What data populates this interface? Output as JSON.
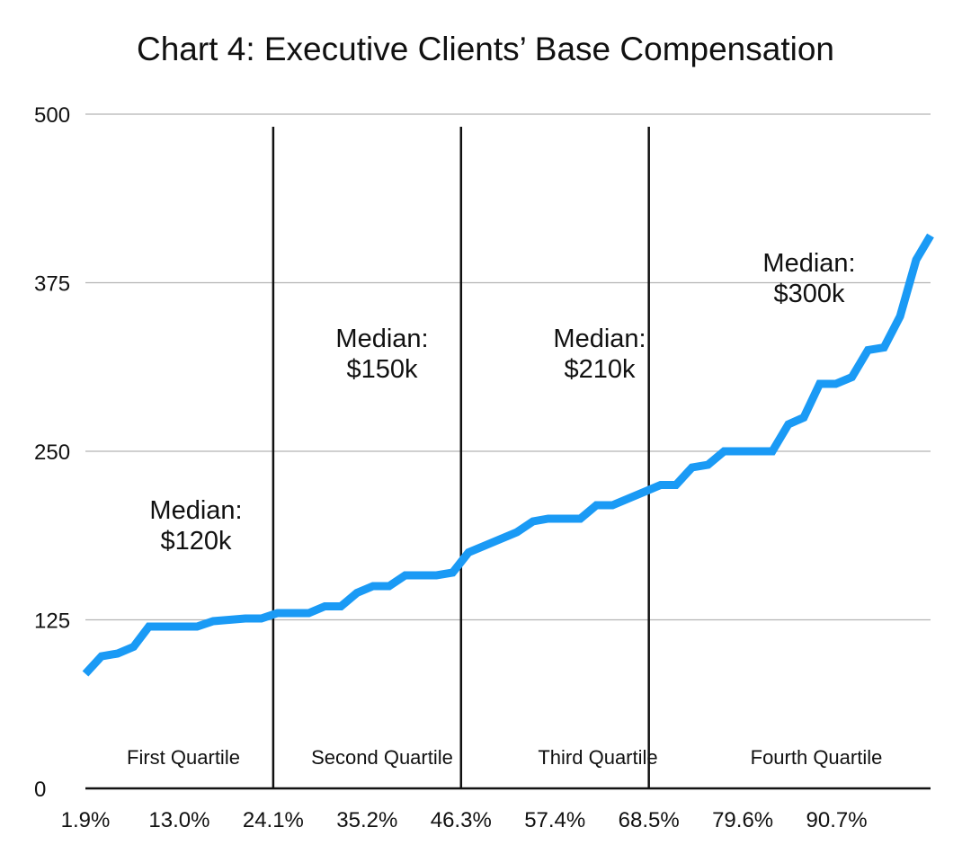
{
  "chart_data": {
    "type": "line",
    "title": "Chart 4: Executive Clients’ Base Compensation",
    "xlabel": "",
    "ylabel": "",
    "ylim": [
      0,
      500
    ],
    "y_ticks": [
      "0",
      "125",
      "250",
      "375",
      "500"
    ],
    "y_tick_values": [
      0,
      125,
      250,
      375,
      500
    ],
    "x_tick_labels": [
      "1.9%",
      "13.0%",
      "24.1%",
      "35.2%",
      "46.3%",
      "57.4%",
      "68.5%",
      "79.6%",
      "90.7%"
    ],
    "x_tick_values": [
      1.9,
      13.0,
      24.1,
      35.2,
      46.3,
      57.4,
      68.5,
      79.6,
      90.7
    ],
    "xlim": [
      1.9,
      101.8
    ],
    "grid": true,
    "series_color": "#1a9af5",
    "quartile_divider_x": [
      24.1,
      46.3,
      68.5
    ],
    "regions": [
      {
        "label": "First Quartile",
        "median_line1": "Median:",
        "median_line2": "$120k"
      },
      {
        "label": "Second Quartile",
        "median_line1": "Median:",
        "median_line2": "$150k"
      },
      {
        "label": "Third Quartile",
        "median_line1": "Median:",
        "median_line2": "$210k"
      },
      {
        "label": "Fourth Quartile",
        "median_line1": "Median:",
        "median_line2": "$300k"
      }
    ],
    "series": [
      {
        "x": [
          1.9,
          3.8,
          5.7,
          7.6,
          9.4,
          11.3,
          13.2,
          15.1,
          17.0,
          18.9,
          20.8,
          22.7,
          24.6,
          26.4,
          28.3,
          30.2,
          32.1,
          34.0,
          35.9,
          37.8,
          39.7,
          41.5,
          43.4,
          45.3,
          47.2,
          49.1,
          51.0,
          52.9,
          54.8,
          56.6,
          58.5,
          60.4,
          62.3,
          64.2,
          66.1,
          68.0,
          69.9,
          71.7,
          73.6,
          75.5,
          77.4,
          79.3,
          81.2,
          83.1,
          85.0,
          86.8,
          88.7,
          90.6,
          92.5,
          94.4,
          96.3,
          98.2,
          100.1,
          101.8
        ],
        "values": [
          85,
          98,
          100,
          105,
          120,
          120,
          120,
          120,
          124,
          125,
          126,
          126,
          130,
          130,
          130,
          135,
          135,
          145,
          150,
          150,
          158,
          158,
          158,
          160,
          175,
          180,
          185,
          190,
          198,
          200,
          200,
          200,
          210,
          210,
          215,
          220,
          225,
          225,
          238,
          240,
          250,
          250,
          250,
          250,
          270,
          275,
          300,
          300,
          305,
          325,
          327,
          350,
          392,
          410
        ]
      }
    ]
  }
}
